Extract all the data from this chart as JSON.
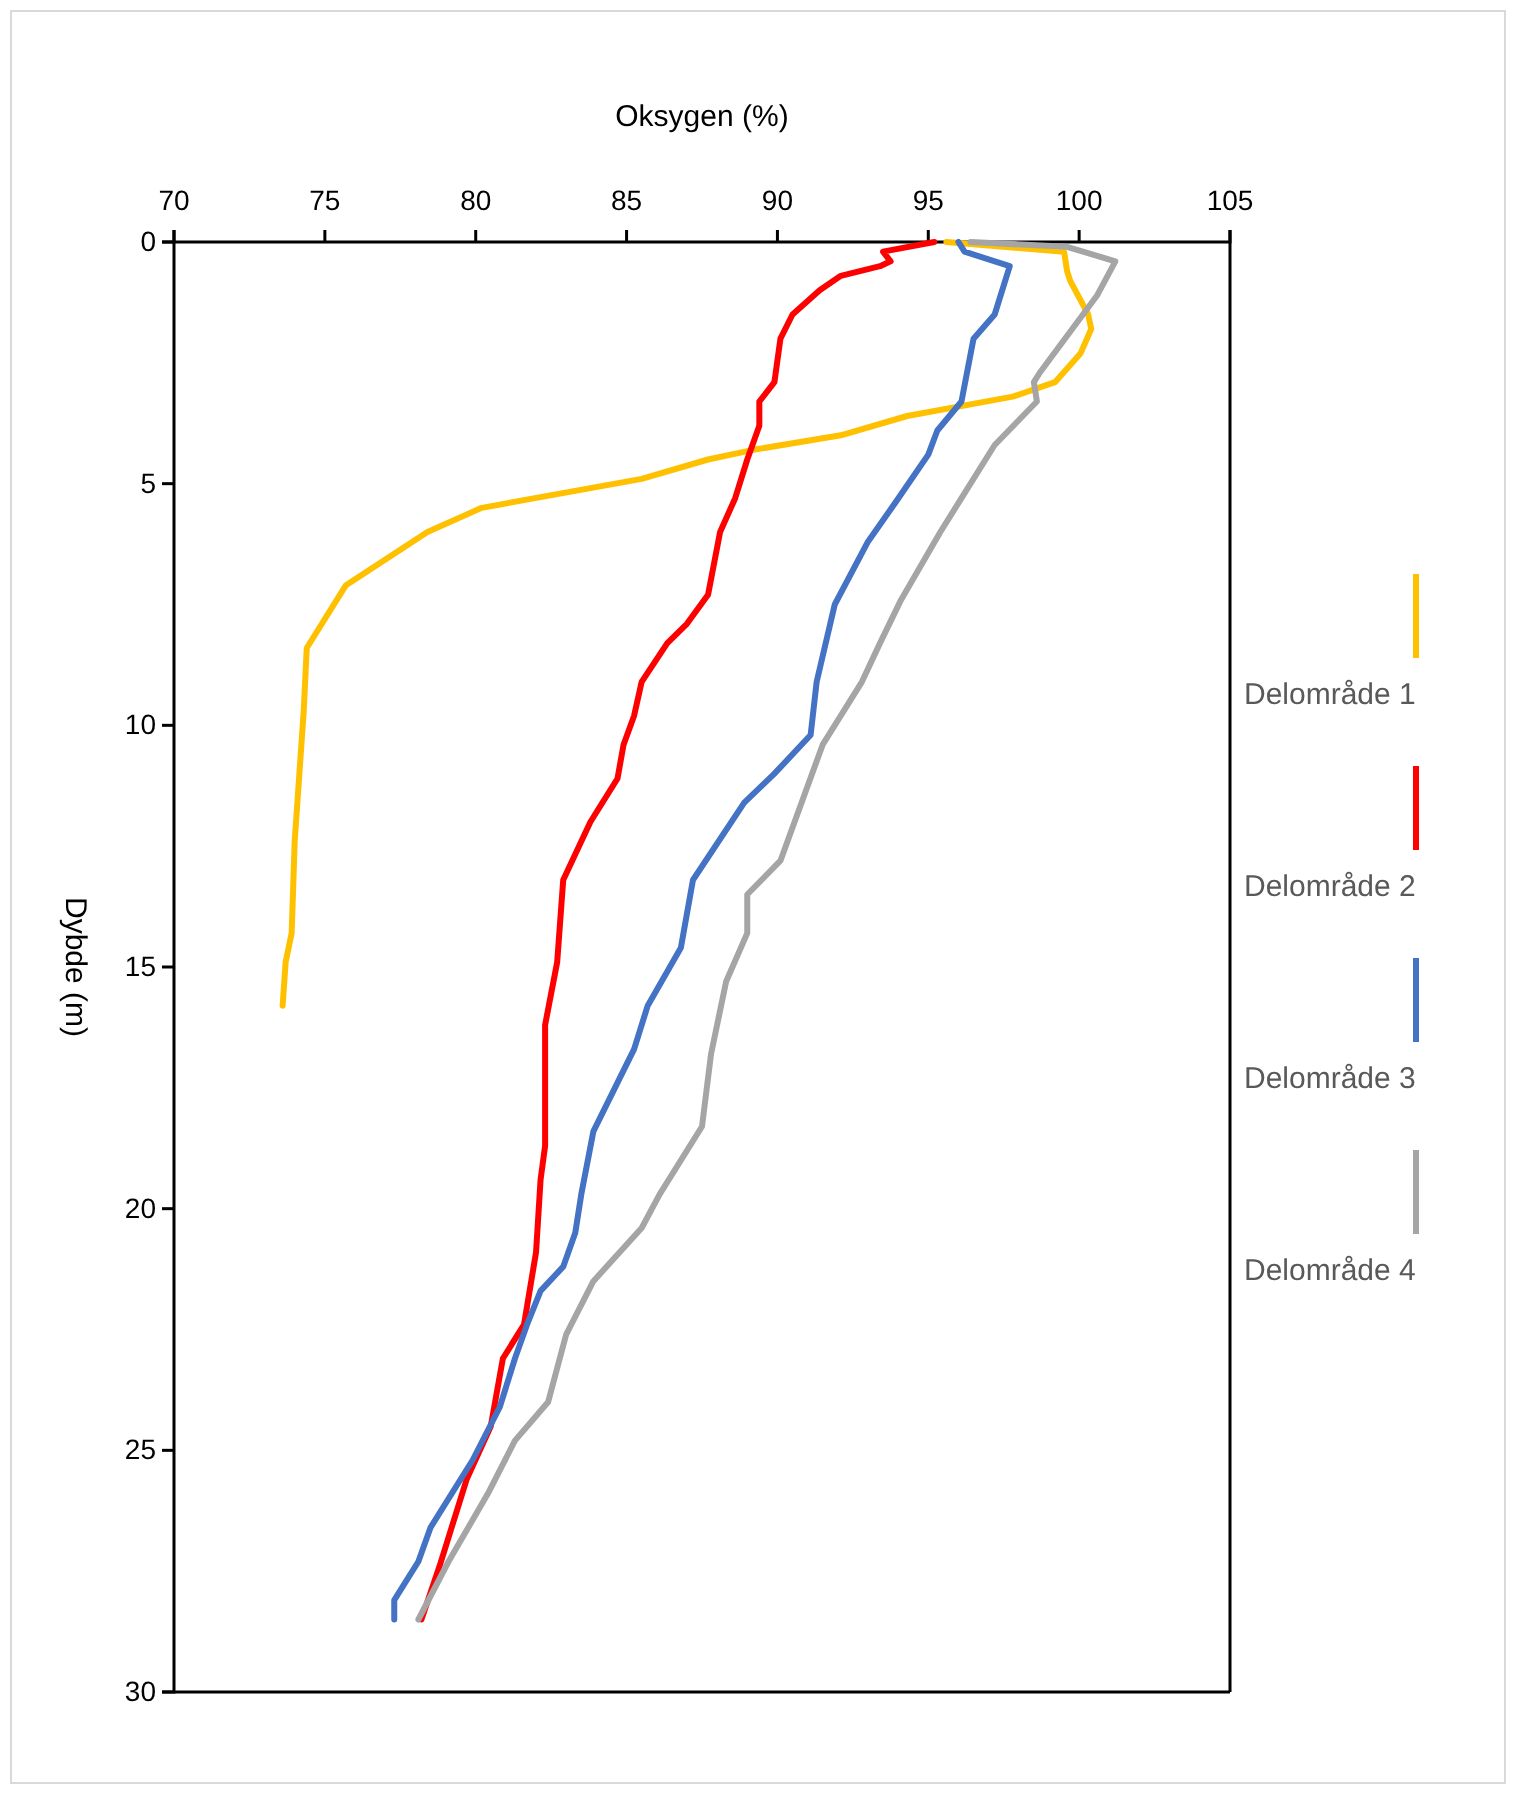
{
  "chart_data": {
    "type": "line",
    "xlabel": "Oksygen (%)",
    "ylabel": "Dybde (m)",
    "xlim": [
      70,
      105
    ],
    "xticks": [
      70,
      75,
      80,
      85,
      90,
      95,
      100,
      105
    ],
    "ylim": [
      30,
      0
    ],
    "yticks": [
      0,
      5,
      10,
      15,
      20,
      25,
      30
    ],
    "grid": false,
    "legend": "right",
    "line_style": "solid",
    "marker": "none",
    "series": [
      {
        "name": "Delområde 1",
        "color": "#ffc000",
        "x": [
          95.6,
          99.5,
          99.6,
          99.7,
          100.3,
          100.4,
          100.05,
          99.2,
          97.8,
          94.3,
          92.1,
          89.2,
          87.7,
          85.5,
          80.2,
          78.4,
          75.7,
          74.4,
          74.3,
          74.0,
          73.9,
          73.7,
          73.6
        ],
        "values": [
          0,
          0.2,
          0.6,
          0.8,
          1.5,
          1.8,
          2.3,
          2.9,
          3.2,
          3.6,
          4.0,
          4.3,
          4.5,
          4.9,
          5.5,
          6.0,
          7.1,
          8.4,
          9.7,
          12.4,
          14.3,
          14.9,
          15.8
        ]
      },
      {
        "name": "Delområde 2",
        "color": "#ff0000",
        "x": [
          95.2,
          93.5,
          93.75,
          93.4,
          92.1,
          91.4,
          90.5,
          90.1,
          89.9,
          89.4,
          89.4,
          89.0,
          88.6,
          88.1,
          87.7,
          87.0,
          86.35,
          85.5,
          85.25,
          84.9,
          84.7,
          83.8,
          82.9,
          82.7,
          82.3,
          82.3,
          82.3,
          82.15,
          82.0,
          81.6,
          80.9,
          80.5,
          79.7,
          78.8,
          78.2
        ],
        "values": [
          0,
          0.2,
          0.4,
          0.5,
          0.7,
          1.0,
          1.5,
          2.0,
          2.9,
          3.3,
          3.8,
          4.5,
          5.3,
          6.0,
          7.3,
          7.9,
          8.3,
          9.1,
          9.8,
          10.4,
          11.1,
          12.0,
          13.2,
          14.9,
          16.2,
          17.3,
          18.7,
          19.4,
          20.9,
          22.4,
          23.1,
          24.5,
          25.6,
          27.4,
          28.5
        ]
      },
      {
        "name": "Delområde 3",
        "color": "#4472c4",
        "x": [
          96.0,
          96.2,
          97.7,
          97.2,
          96.5,
          96.1,
          95.3,
          95.0,
          93.9,
          93.0,
          91.9,
          91.3,
          91.1,
          89.9,
          88.9,
          87.2,
          86.8,
          85.7,
          85.25,
          83.9,
          83.5,
          83.3,
          82.9,
          82.15,
          81.7,
          81.3,
          80.8,
          79.9,
          78.5,
          78.1,
          77.3,
          77.3
        ],
        "values": [
          0,
          0.2,
          0.5,
          1.5,
          2.0,
          3.3,
          3.9,
          4.4,
          5.4,
          6.2,
          7.5,
          9.1,
          10.2,
          11.0,
          11.6,
          13.2,
          14.6,
          15.8,
          16.7,
          18.4,
          19.7,
          20.5,
          21.2,
          21.7,
          22.4,
          23.1,
          24.1,
          25.2,
          26.6,
          27.3,
          28.1,
          28.5
        ]
      },
      {
        "name": "Delområde 4",
        "color": "#a5a5a5",
        "x": [
          96.4,
          99.6,
          101.2,
          100.6,
          98.7,
          98.5,
          98.6,
          97.2,
          96.1,
          95.4,
          94.1,
          93.4,
          92.8,
          91.5,
          90.1,
          89.0,
          89.0,
          88.3,
          87.8,
          87.5,
          86.1,
          85.5,
          83.9,
          83.0,
          82.4,
          81.3,
          80.4,
          79.1,
          78.1
        ],
        "values": [
          0,
          0.1,
          0.4,
          1.1,
          2.7,
          2.9,
          3.3,
          4.2,
          5.3,
          6.0,
          7.4,
          8.3,
          9.1,
          10.4,
          12.8,
          13.5,
          14.3,
          15.3,
          16.8,
          18.3,
          19.7,
          20.4,
          21.5,
          22.6,
          24.0,
          24.8,
          25.9,
          27.3,
          28.5
        ]
      }
    ]
  }
}
